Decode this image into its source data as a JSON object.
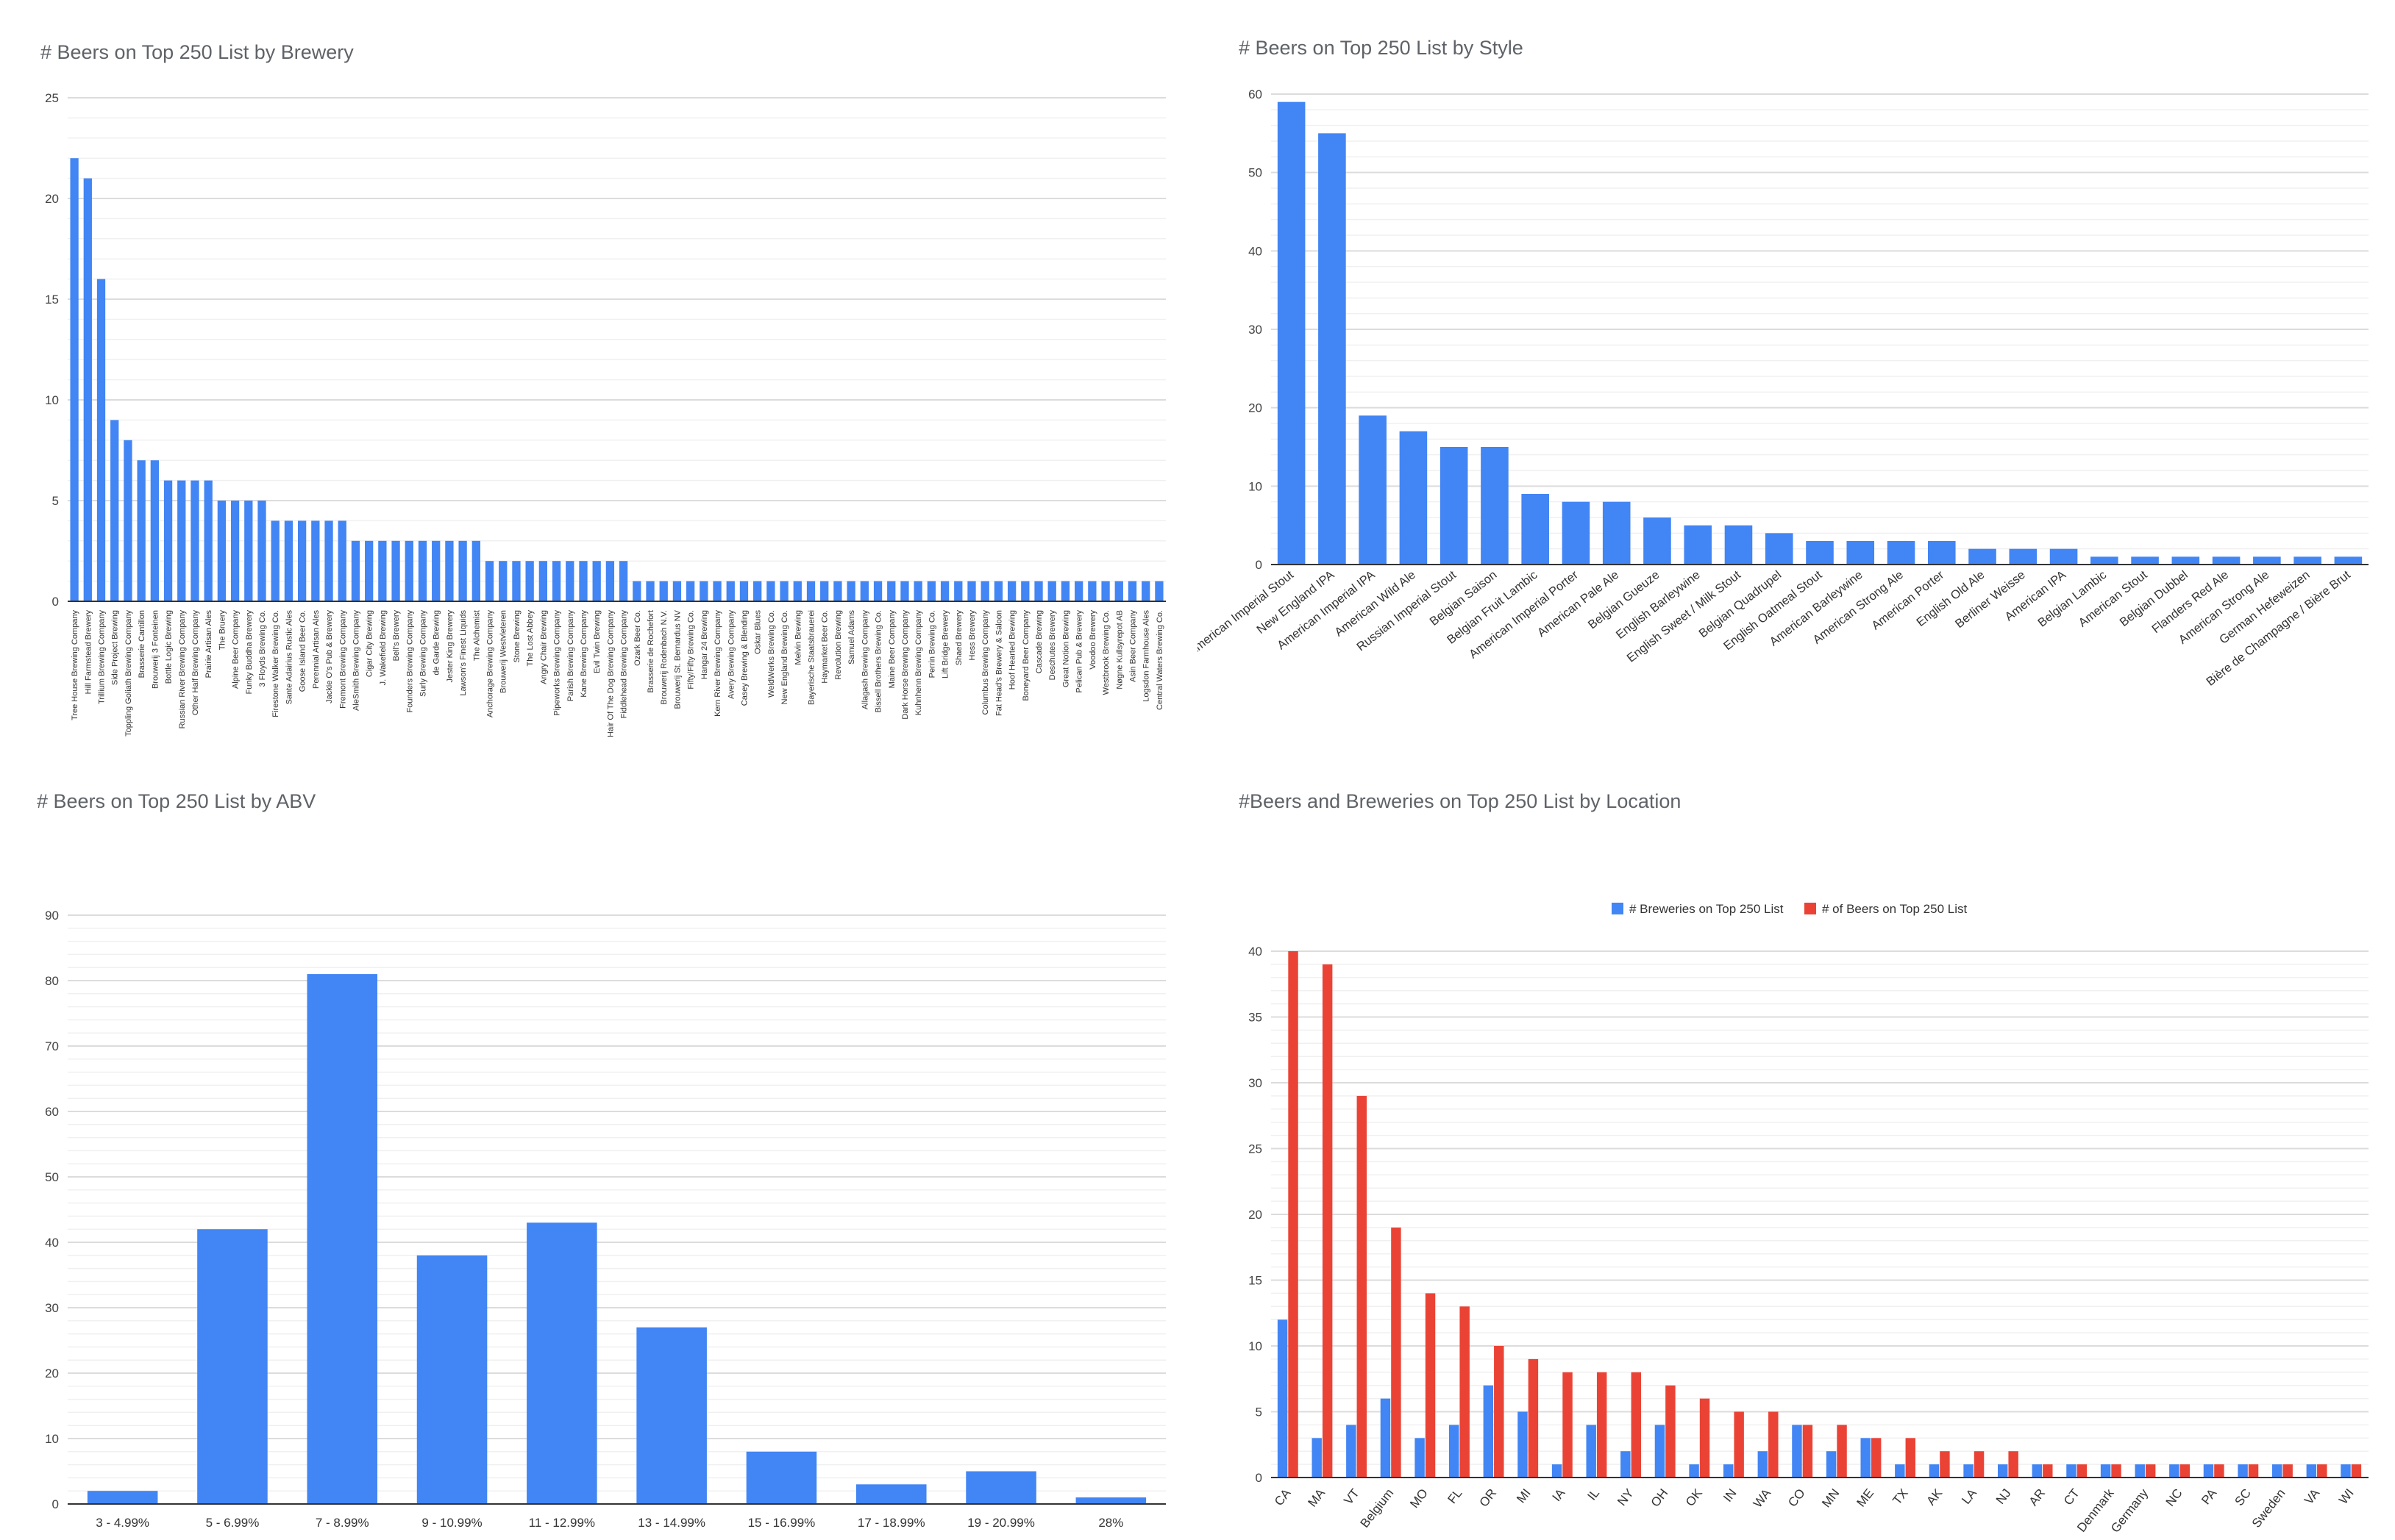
{
  "colors": {
    "blue": "#4285f4",
    "red": "#ea4335",
    "grid": "#dcdcdc",
    "minor_grid": "#f0f0f0",
    "axis": "#333333"
  },
  "chart_data": [
    {
      "type": "bar",
      "title": "# Beers on Top 250 List by Brewery",
      "xlabel": "",
      "ylabel": "",
      "ylim": [
        0,
        25
      ],
      "yticks": [
        0,
        5,
        10,
        15,
        20,
        25
      ],
      "grid": true,
      "legend": "none",
      "categories": [
        "Tree House Brewing Company",
        "Hill Farmstead Brewery",
        "Trillium Brewing Company",
        "Side Project Brewing",
        "Toppling Goliath Brewing Company",
        "Brasserie Cantillon",
        "Brouwerij 3 Fonteinen",
        "Bottle Logic Brewing",
        "Russian River Brewing Company",
        "Other Half Brewing Company",
        "Prairie Artisan Ales",
        "The Bruery",
        "Alpine Beer Company",
        "Funky Buddha Brewery",
        "3 Floyds Brewing Co.",
        "Firestone Walker Brewing Co.",
        "Sante Adairius Rustic Ales",
        "Goose Island Beer Co.",
        "Perennial Artisan Ales",
        "Jackie O's Pub & Brewery",
        "Fremont Brewing Company",
        "AleSmith Brewing Company",
        "Cigar City Brewing",
        "J. Wakefield Brewing",
        "Bell's Brewery",
        "Founders Brewing Company",
        "Surly Brewing Company",
        "de Garde Brewing",
        "Jester King Brewery",
        "Lawson's Finest Liquids",
        "The Alchemist",
        "Anchorage Brewing Company",
        "Brouwerij Westvleteren",
        "Stone Brewing",
        "The Lost Abbey",
        "Angry Chair Brewing",
        "Pipeworks Brewing Company",
        "Parish Brewing Company",
        "Kane Brewing Company",
        "Evil Twin Brewing",
        "Hair Of The Dog Brewing Company",
        "Fiddlehead Brewing Company",
        "Ozark Beer Co.",
        "Brasserie de Rochefort",
        "Brouwerij Rodenbach N.V.",
        "Brouwerij St. Bernardus NV",
        "Fifty/Fifty Brewing Co.",
        "Hangar 24 Brewing",
        "Kern River Brewing Company",
        "Avery Brewing Company",
        "Casey Brewing & Blending",
        "Oskar Blues",
        "WeldWerks Brewing Co.",
        "New England Brewing Co.",
        "Melvin Brewing",
        "Bayerische Staatsbrauerei",
        "Haymarket Beer Co.",
        "Revolution Brewing",
        "Samuel Adams",
        "Allagash Brewing Company",
        "Bissell Brothers Brewing Co.",
        "Maine Beer Company",
        "Dark Horse Brewing Company",
        "Kuhnhenn Brewing Company",
        "Perrin Brewing Co.",
        "Lift Bridge Brewery",
        "Shaed Brewery",
        "Hess Brewery",
        "Columbus Brewing Company",
        "Fat Head's Brewery & Saloon",
        "Hoof Hearted Brewing",
        "Boneyard Beer Company",
        "Cascade Brewing",
        "Deschutes Brewery",
        "Great Notion Brewing",
        "Pelican Pub & Brewery",
        "Voodoo Brewery",
        "Westbrook Brewing Co.",
        "Nøgne Kullsyrepot AB",
        "Asin Beer Company",
        "Logsdon Farmhouse Ales",
        "Central Waters Brewing Co."
      ],
      "values": [
        22,
        21,
        16,
        9,
        8,
        7,
        7,
        6,
        6,
        6,
        6,
        5,
        5,
        5,
        5,
        4,
        4,
        4,
        4,
        4,
        4,
        3,
        3,
        3,
        3,
        3,
        3,
        3,
        3,
        3,
        3,
        2,
        2,
        2,
        2,
        2,
        2,
        2,
        2,
        2,
        2,
        2,
        1,
        1,
        1,
        1,
        1,
        1,
        1,
        1,
        1,
        1,
        1,
        1,
        1,
        1,
        1,
        1,
        1,
        1,
        1,
        1,
        1,
        1,
        1,
        1,
        1,
        1,
        1,
        1,
        1,
        1,
        1,
        1,
        1,
        1,
        1,
        1,
        1,
        1,
        1,
        1
      ]
    },
    {
      "type": "bar",
      "title": "# Beers on Top 250 List by Style",
      "xlabel": "",
      "ylabel": "",
      "ylim": [
        0,
        60
      ],
      "yticks": [
        0,
        10,
        20,
        30,
        40,
        50,
        60
      ],
      "grid": true,
      "legend": "none",
      "categories": [
        "American Imperial Stout",
        "New England IPA",
        "American Imperial IPA",
        "American Wild Ale",
        "Russian Imperial Stout",
        "Belgian Saison",
        "Belgian Fruit Lambic",
        "American Imperial Porter",
        "American Pale Ale",
        "Belgian Gueuze",
        "English Barleywine",
        "English Sweet / Milk Stout",
        "Belgian Quadrupel",
        "English Oatmeal Stout",
        "American Barleywine",
        "American Strong Ale",
        "American Porter",
        "English Old Ale",
        "Berliner Weisse",
        "American IPA",
        "Belgian Lambic",
        "American Stout",
        "Belgian Dubbel",
        "Flanders Red Ale",
        "American Strong Ale",
        "German Hefeweizen",
        "Bière de Champagne / Bière Brut"
      ],
      "values": [
        59,
        55,
        19,
        17,
        15,
        15,
        9,
        8,
        8,
        6,
        5,
        5,
        4,
        3,
        3,
        3,
        3,
        2,
        2,
        2,
        1,
        1,
        1,
        1,
        1,
        1,
        1
      ]
    },
    {
      "type": "bar",
      "title": "# Beers on Top 250 List by ABV",
      "xlabel": "",
      "ylabel": "",
      "ylim": [
        0,
        90
      ],
      "yticks": [
        0,
        10,
        20,
        30,
        40,
        50,
        60,
        70,
        80,
        90
      ],
      "grid": true,
      "legend": "none",
      "categories": [
        "3 - 4.99%",
        "5 - 6.99%",
        "7 - 8.99%",
        "9 - 10.99%",
        "11 - 12.99%",
        "13 - 14.99%",
        "15 - 16.99%",
        "17 - 18.99%",
        "19 - 20.99%",
        "28%"
      ],
      "values": [
        2,
        42,
        81,
        38,
        43,
        27,
        8,
        3,
        5,
        1
      ]
    },
    {
      "type": "bar",
      "title": "#Beers and Breweries on Top 250 List by Location",
      "xlabel": "",
      "ylabel": "",
      "ylim": [
        0,
        40
      ],
      "yticks": [
        0,
        5,
        10,
        15,
        20,
        25,
        30,
        35,
        40
      ],
      "grid": true,
      "legend": "top",
      "categories": [
        "CA",
        "MA",
        "VT",
        "Belgium",
        "MO",
        "FL",
        "OR",
        "MI",
        "IA",
        "IL",
        "NY",
        "OH",
        "OK",
        "IN",
        "WA",
        "CO",
        "MN",
        "ME",
        "TX",
        "AK",
        "LA",
        "NJ",
        "AR",
        "CT",
        "Denmark",
        "Germany",
        "NC",
        "PA",
        "SC",
        "Sweden",
        "VA",
        "WI"
      ],
      "series": [
        {
          "name": "# Breweries on Top 250 List",
          "color": "#4285f4",
          "values": [
            12,
            3,
            4,
            6,
            3,
            4,
            7,
            5,
            1,
            4,
            2,
            4,
            1,
            1,
            2,
            4,
            2,
            3,
            1,
            1,
            1,
            1,
            1,
            1,
            1,
            1,
            1,
            1,
            1,
            1,
            1,
            1
          ]
        },
        {
          "name": "# of Beers on Top 250 List",
          "color": "#ea4335",
          "values": [
            40,
            39,
            29,
            19,
            14,
            13,
            10,
            9,
            8,
            8,
            8,
            7,
            6,
            5,
            5,
            4,
            4,
            3,
            3,
            2,
            2,
            2,
            1,
            1,
            1,
            1,
            1,
            1,
            1,
            1,
            1,
            1
          ]
        }
      ]
    }
  ]
}
